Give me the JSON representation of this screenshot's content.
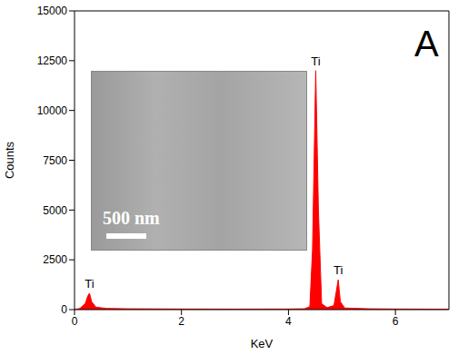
{
  "chart_data": {
    "type": "area",
    "panel_label": "A",
    "x_label": "KeV",
    "y_label": "Counts",
    "color": "#ff0000",
    "xlim": [
      0,
      7
    ],
    "xticks": [
      0,
      2,
      4,
      6
    ],
    "ylim": [
      0,
      15000
    ],
    "yticks": [
      0,
      2500,
      5000,
      7500,
      10000,
      12500,
      15000
    ],
    "x": [
      0,
      0.1,
      0.2,
      0.25,
      0.28,
      0.32,
      0.4,
      0.6,
      1.0,
      2.0,
      3.0,
      4.0,
      4.3,
      4.4,
      4.45,
      4.51,
      4.56,
      4.62,
      4.72,
      4.85,
      4.9,
      4.93,
      4.97,
      5.05,
      5.5,
      6.0,
      7.0
    ],
    "values": [
      0,
      60,
      300,
      700,
      820,
      400,
      120,
      60,
      40,
      30,
      25,
      30,
      40,
      150,
      3000,
      12000,
      5000,
      300,
      100,
      200,
      1000,
      1500,
      400,
      80,
      40,
      30,
      20
    ],
    "annotations": [
      {
        "text": "Ti",
        "x": 0.28,
        "y": 820
      },
      {
        "text": "Ti",
        "x": 4.51,
        "y": 12000
      },
      {
        "text": "Ti",
        "x": 4.93,
        "y": 1500
      }
    ],
    "inset": {
      "scale_bar_label": "500 nm"
    }
  }
}
